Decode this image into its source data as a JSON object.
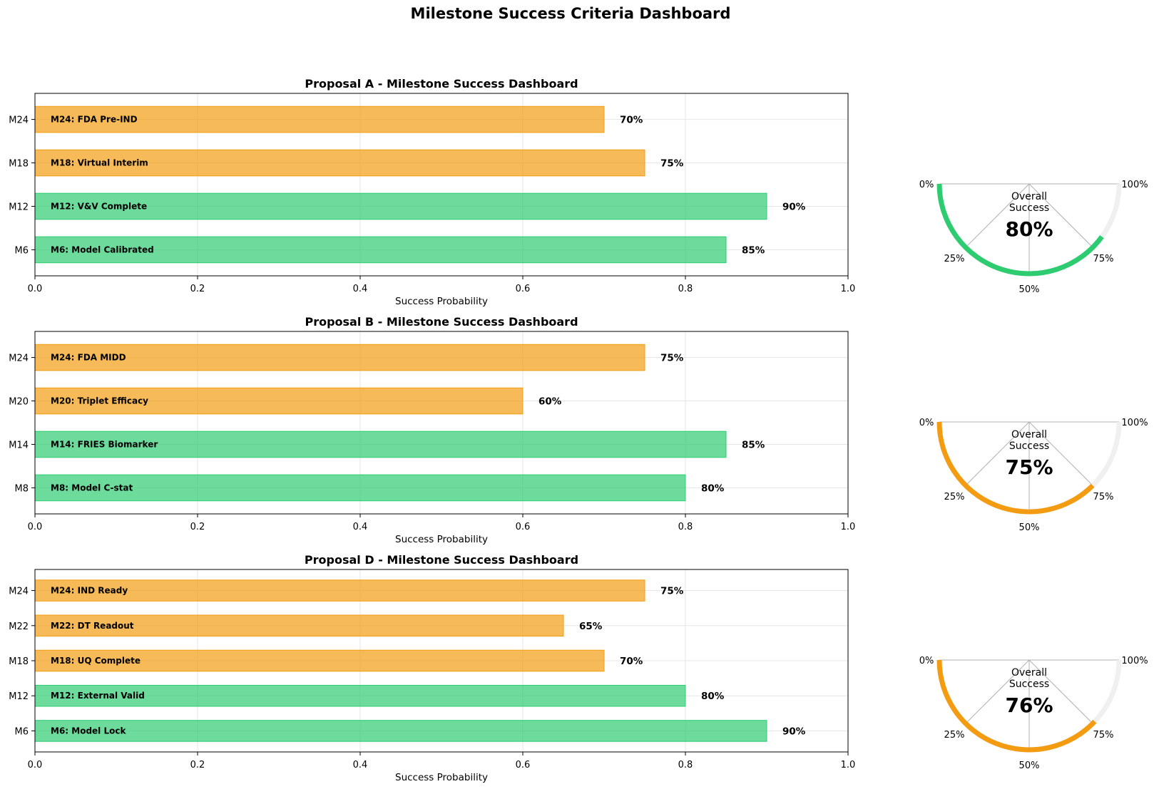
{
  "title": "Milestone Success Criteria Dashboard",
  "colors": {
    "green": "#2ecc71",
    "orange": "#f39c12",
    "track": "#f0f0f0",
    "grid": "#e5e5e5",
    "spoke": "#b0b0b0"
  },
  "chart_data": [
    {
      "type": "bar",
      "orientation": "horizontal",
      "title": "Proposal A - Milestone Success Dashboard",
      "xlabel": "Success Probability",
      "ylabel": "",
      "xlim": [
        0,
        1.0
      ],
      "xticks": [
        "0.0",
        "0.2",
        "0.4",
        "0.6",
        "0.8",
        "1.0"
      ],
      "grid": true,
      "categories": [
        "M6",
        "M12",
        "M18",
        "M24"
      ],
      "bar_labels": [
        "M6: Model Calibrated",
        "M12: V&V Complete",
        "M18: Virtual Interim",
        "M24: FDA Pre-IND"
      ],
      "values": [
        0.85,
        0.9,
        0.75,
        0.7
      ],
      "value_labels": [
        "85%",
        "90%",
        "75%",
        "70%"
      ],
      "bar_colors": [
        "#2ecc71",
        "#2ecc71",
        "#f39c12",
        "#f39c12"
      ]
    },
    {
      "type": "bar",
      "orientation": "horizontal",
      "title": "Proposal B - Milestone Success Dashboard",
      "xlabel": "Success Probability",
      "ylabel": "",
      "xlim": [
        0,
        1.0
      ],
      "xticks": [
        "0.0",
        "0.2",
        "0.4",
        "0.6",
        "0.8",
        "1.0"
      ],
      "grid": true,
      "categories": [
        "M8",
        "M14",
        "M20",
        "M24"
      ],
      "bar_labels": [
        "M8: Model C-stat",
        "M14: FRIES Biomarker",
        "M20: Triplet Efficacy",
        "M24: FDA MIDD"
      ],
      "values": [
        0.8,
        0.85,
        0.6,
        0.75
      ],
      "value_labels": [
        "80%",
        "85%",
        "60%",
        "75%"
      ],
      "bar_colors": [
        "#2ecc71",
        "#2ecc71",
        "#f39c12",
        "#f39c12"
      ]
    },
    {
      "type": "bar",
      "orientation": "horizontal",
      "title": "Proposal D - Milestone Success Dashboard",
      "xlabel": "Success Probability",
      "ylabel": "",
      "xlim": [
        0,
        1.0
      ],
      "xticks": [
        "0.0",
        "0.2",
        "0.4",
        "0.6",
        "0.8",
        "1.0"
      ],
      "grid": true,
      "categories": [
        "M6",
        "M12",
        "M18",
        "M22",
        "M24"
      ],
      "bar_labels": [
        "M6: Model Lock",
        "M12: External Valid",
        "M18: UQ Complete",
        "M22: DT Readout",
        "M24: IND Ready"
      ],
      "values": [
        0.9,
        0.8,
        0.7,
        0.65,
        0.75
      ],
      "value_labels": [
        "90%",
        "80%",
        "70%",
        "65%",
        "75%"
      ],
      "bar_colors": [
        "#2ecc71",
        "#2ecc71",
        "#f39c12",
        "#f39c12",
        "#f39c12"
      ]
    },
    {
      "type": "gauge",
      "label": "Overall\nSuccess",
      "value": 0.8,
      "value_label": "80%",
      "color": "#2ecc71",
      "tick_labels": [
        "0%",
        "25%",
        "50%",
        "75%",
        "100%"
      ]
    },
    {
      "type": "gauge",
      "label": "Overall\nSuccess",
      "value": 0.75,
      "value_label": "75%",
      "color": "#f39c12",
      "tick_labels": [
        "0%",
        "25%",
        "50%",
        "75%",
        "100%"
      ]
    },
    {
      "type": "gauge",
      "label": "Overall\nSuccess",
      "value": 0.76,
      "value_label": "76%",
      "color": "#f39c12",
      "tick_labels": [
        "0%",
        "25%",
        "50%",
        "75%",
        "100%"
      ]
    }
  ]
}
